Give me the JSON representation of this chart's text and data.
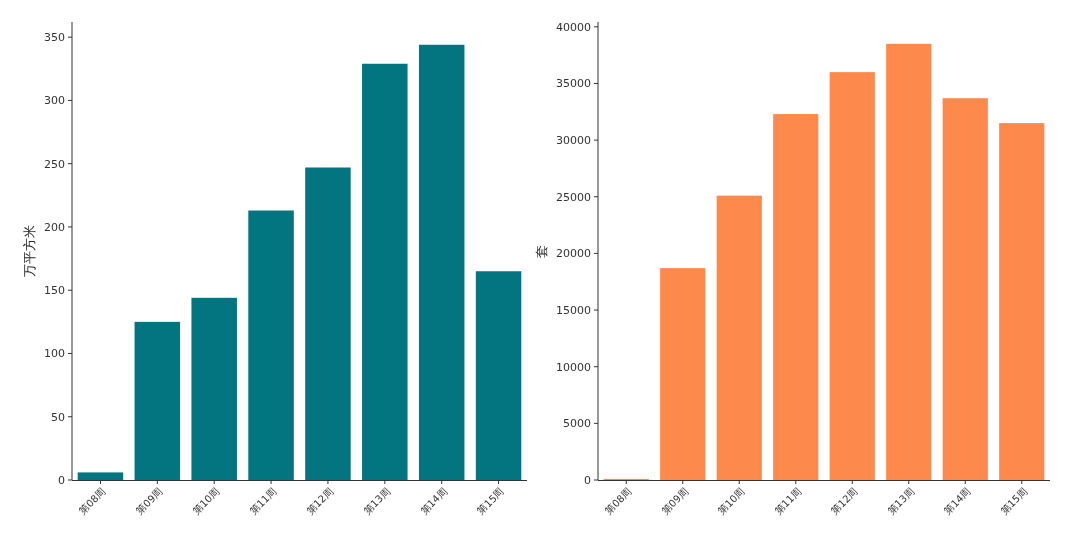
{
  "chart_data": [
    {
      "type": "bar",
      "ylabel": "万平方米",
      "categories": [
        "第08周",
        "第09周",
        "第10周",
        "第11周",
        "第12周",
        "第13周",
        "第14周",
        "第15周"
      ],
      "values": [
        6,
        125,
        144,
        213,
        247,
        329,
        344,
        165
      ],
      "color": "#027580",
      "ylim": [
        0,
        362
      ],
      "yticks": [
        0,
        50,
        100,
        150,
        200,
        250,
        300,
        350
      ]
    },
    {
      "type": "bar",
      "ylabel": "套",
      "categories": [
        "第08周",
        "第09周",
        "第10周",
        "第11周",
        "第12周",
        "第13周",
        "第14周",
        "第15周"
      ],
      "values": [
        100,
        18700,
        25100,
        32300,
        36000,
        38500,
        33700,
        31500
      ],
      "color": "#fd8a4c",
      "ylim": [
        0,
        40425
      ],
      "yticks": [
        0,
        5000,
        10000,
        15000,
        20000,
        25000,
        30000,
        35000,
        40000
      ]
    }
  ]
}
